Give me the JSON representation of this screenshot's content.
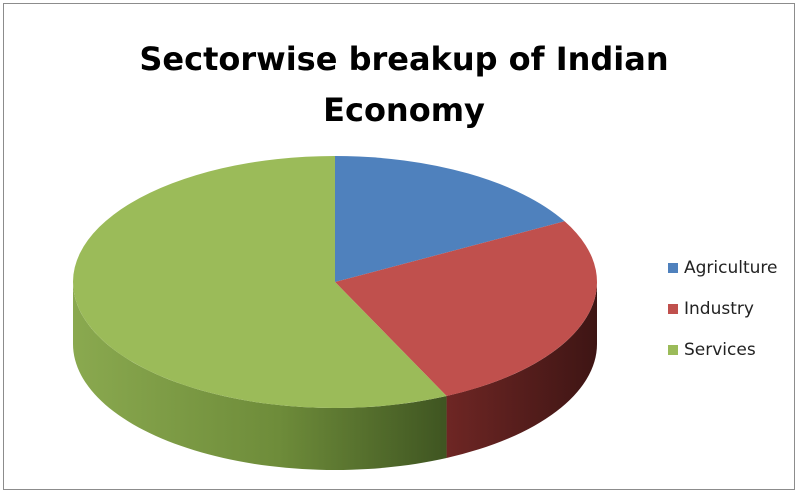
{
  "chart_data": {
    "type": "pie",
    "title_lines": [
      "Sectorwise breakup of Indian",
      "Economy"
    ],
    "categories": [
      "Agriculture",
      "Industry",
      "Services"
    ],
    "values": [
      17,
      26,
      57
    ],
    "colors": [
      "#4f81bd",
      "#c0504d",
      "#9bbb59"
    ],
    "side_colors": [
      "#2e4d72",
      "#5a1f1d",
      "#5d7a2e"
    ],
    "legend_position": "right",
    "style": "3d"
  }
}
